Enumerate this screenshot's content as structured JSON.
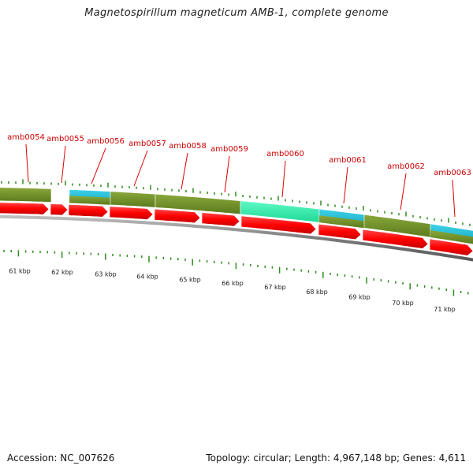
{
  "title": "Magnetospirillum magneticum AMB-1, complete genome",
  "accession": "Accession: NC_007626",
  "summary": "Topology: circular; Length: 4,967,148 bp; Genes: 4,611",
  "genes": [
    {
      "label": "amb0054"
    },
    {
      "label": "amb0055"
    },
    {
      "label": "amb0056"
    },
    {
      "label": "amb0057"
    },
    {
      "label": "amb0058"
    },
    {
      "label": "amb0059"
    },
    {
      "label": "amb0060"
    },
    {
      "label": "amb0061"
    },
    {
      "label": "amb0062"
    },
    {
      "label": "amb0063"
    }
  ],
  "scale_labels": [
    "61 kbp",
    "62 kbp",
    "63 kbp",
    "64 kbp",
    "65 kbp",
    "66 kbp",
    "67 kbp",
    "68 kbp",
    "69 kbp",
    "70 kbp",
    "71 kbp"
  ],
  "colors": {
    "cds_arrow": "#ff0000",
    "olive_block": "#6b8e23",
    "cyan_block": "#1ebfd6",
    "aqua_block": "#33f0b0",
    "backbone": "#888888",
    "tick": "#2e8b1e",
    "label": "#cc0000"
  }
}
